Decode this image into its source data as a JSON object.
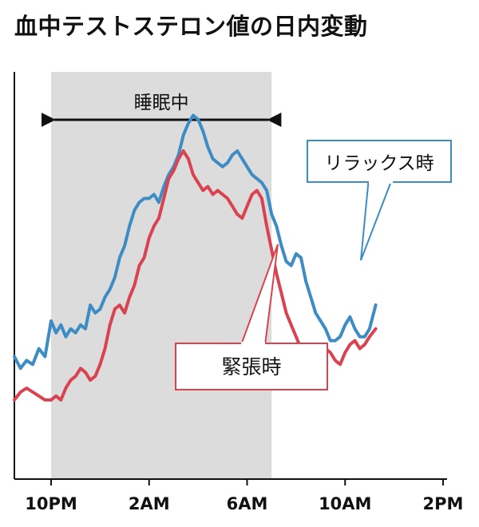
{
  "chart_data": {
    "type": "line",
    "title": "血中テストステロン値の日内変動",
    "xlabel": "",
    "ylabel": "",
    "x_ticks": [
      {
        "hour": 22,
        "label": "10PM"
      },
      {
        "hour": 26,
        "label": "2AM"
      },
      {
        "hour": 30,
        "label": "6AM"
      },
      {
        "hour": 34,
        "label": "10AM"
      },
      {
        "hour": 38,
        "label": "2PM"
      }
    ],
    "xlim": [
      20.5,
      38
    ],
    "ylim": [
      0,
      100
    ],
    "grid": false,
    "sleep_period": {
      "label": "睡眠中",
      "start_hour": 22,
      "end_hour": 31
    }
  },
  "series": [
    {
      "name": "リラックス時",
      "color": "#3d8cc4",
      "points": [
        [
          20.5,
          29
        ],
        [
          20.75,
          26
        ],
        [
          21.0,
          28
        ],
        [
          21.25,
          27
        ],
        [
          21.5,
          31
        ],
        [
          21.75,
          29
        ],
        [
          22.0,
          38
        ],
        [
          22.2,
          35
        ],
        [
          22.4,
          37
        ],
        [
          22.6,
          34
        ],
        [
          22.8,
          36
        ],
        [
          23.0,
          35
        ],
        [
          23.2,
          37
        ],
        [
          23.4,
          36
        ],
        [
          23.6,
          42
        ],
        [
          23.8,
          40
        ],
        [
          24.0,
          41
        ],
        [
          24.2,
          44
        ],
        [
          24.4,
          46
        ],
        [
          24.6,
          49
        ],
        [
          24.8,
          54
        ],
        [
          25.0,
          57
        ],
        [
          25.2,
          62
        ],
        [
          25.4,
          66
        ],
        [
          25.6,
          68
        ],
        [
          25.8,
          69
        ],
        [
          26.0,
          69
        ],
        [
          26.2,
          70
        ],
        [
          26.4,
          68
        ],
        [
          26.6,
          72
        ],
        [
          26.8,
          75
        ],
        [
          27.0,
          77
        ],
        [
          27.2,
          80
        ],
        [
          27.4,
          85
        ],
        [
          27.6,
          88
        ],
        [
          27.8,
          90
        ],
        [
          28.0,
          89
        ],
        [
          28.2,
          86
        ],
        [
          28.4,
          82
        ],
        [
          28.6,
          79
        ],
        [
          28.8,
          78
        ],
        [
          29.0,
          77
        ],
        [
          29.2,
          78
        ],
        [
          29.4,
          80
        ],
        [
          29.6,
          81
        ],
        [
          29.8,
          79
        ],
        [
          30.0,
          77
        ],
        [
          30.2,
          75
        ],
        [
          30.4,
          74
        ],
        [
          30.6,
          73
        ],
        [
          30.8,
          71
        ],
        [
          31.0,
          65
        ],
        [
          31.2,
          62
        ],
        [
          31.4,
          57
        ],
        [
          31.6,
          53
        ],
        [
          31.8,
          52
        ],
        [
          32.0,
          55
        ],
        [
          32.2,
          54
        ],
        [
          32.4,
          48
        ],
        [
          32.6,
          44
        ],
        [
          32.8,
          40
        ],
        [
          33.0,
          38
        ],
        [
          33.2,
          36
        ],
        [
          33.4,
          33
        ],
        [
          33.6,
          33
        ],
        [
          33.8,
          34
        ],
        [
          34.0,
          37
        ],
        [
          34.2,
          39
        ],
        [
          34.4,
          36
        ],
        [
          34.6,
          34
        ],
        [
          34.8,
          34
        ],
        [
          35.0,
          36
        ],
        [
          35.25,
          42
        ]
      ]
    },
    {
      "name": "緊張時",
      "color": "#d9434f",
      "points": [
        [
          20.5,
          18
        ],
        [
          20.75,
          20
        ],
        [
          21.0,
          21
        ],
        [
          21.25,
          20
        ],
        [
          21.5,
          19
        ],
        [
          21.75,
          18
        ],
        [
          22.0,
          18
        ],
        [
          22.2,
          19
        ],
        [
          22.4,
          18
        ],
        [
          22.6,
          21
        ],
        [
          22.8,
          23
        ],
        [
          23.0,
          24
        ],
        [
          23.2,
          26
        ],
        [
          23.4,
          25
        ],
        [
          23.6,
          23
        ],
        [
          23.8,
          24
        ],
        [
          24.0,
          27
        ],
        [
          24.2,
          31
        ],
        [
          24.4,
          37
        ],
        [
          24.6,
          41
        ],
        [
          24.8,
          42
        ],
        [
          25.0,
          40
        ],
        [
          25.2,
          44
        ],
        [
          25.4,
          47
        ],
        [
          25.6,
          52
        ],
        [
          25.8,
          54
        ],
        [
          26.0,
          59
        ],
        [
          26.2,
          62
        ],
        [
          26.4,
          64
        ],
        [
          26.6,
          69
        ],
        [
          26.8,
          74
        ],
        [
          27.0,
          76
        ],
        [
          27.2,
          79
        ],
        [
          27.4,
          81
        ],
        [
          27.6,
          79
        ],
        [
          27.8,
          75
        ],
        [
          28.0,
          73
        ],
        [
          28.2,
          71
        ],
        [
          28.4,
          72
        ],
        [
          28.6,
          70
        ],
        [
          28.8,
          71
        ],
        [
          29.0,
          70
        ],
        [
          29.2,
          69
        ],
        [
          29.4,
          67
        ],
        [
          29.6,
          65
        ],
        [
          29.8,
          64
        ],
        [
          30.0,
          67
        ],
        [
          30.2,
          70
        ],
        [
          30.4,
          71
        ],
        [
          30.6,
          69
        ],
        [
          30.8,
          62
        ],
        [
          31.0,
          56
        ],
        [
          31.2,
          50
        ],
        [
          31.4,
          45
        ],
        [
          31.6,
          40
        ],
        [
          31.8,
          37
        ],
        [
          32.0,
          34
        ],
        [
          32.2,
          31
        ],
        [
          32.4,
          29
        ],
        [
          32.6,
          28
        ],
        [
          32.8,
          28
        ],
        [
          33.0,
          30
        ],
        [
          33.2,
          31
        ],
        [
          33.4,
          30
        ],
        [
          33.6,
          28
        ],
        [
          33.8,
          27
        ],
        [
          34.0,
          30
        ],
        [
          34.2,
          32
        ],
        [
          34.4,
          33
        ],
        [
          34.6,
          31
        ],
        [
          34.8,
          32
        ],
        [
          35.0,
          34
        ],
        [
          35.25,
          36
        ]
      ]
    }
  ],
  "annotations": {
    "relax": {
      "text": "リラックス時"
    },
    "tense": {
      "text": "緊張時"
    }
  }
}
